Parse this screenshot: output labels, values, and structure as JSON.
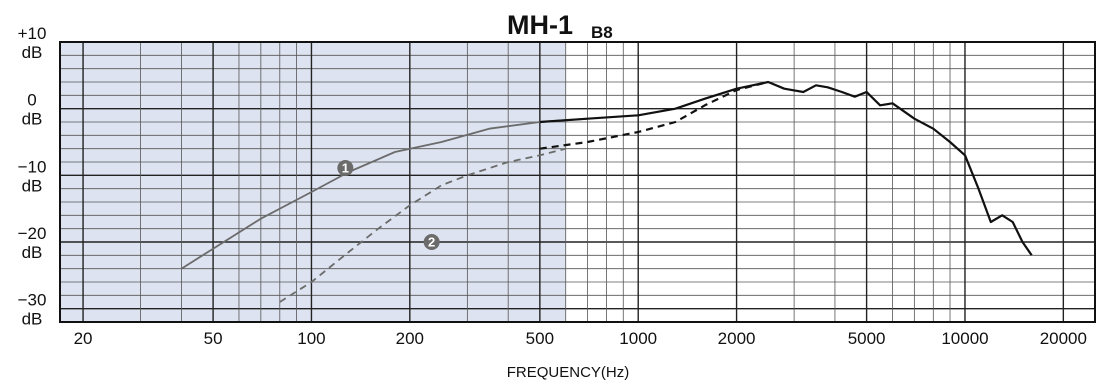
{
  "chart_data": {
    "type": "line",
    "title": "MH-1",
    "subtitle": "B8",
    "xlabel": "FREQUENCY(Hz)",
    "ylabel": "",
    "x_scale": "log",
    "xlim": [
      17,
      25000
    ],
    "ylim": [
      -32,
      10
    ],
    "grid": true,
    "x_ticks": [
      {
        "value": 20,
        "label": "20"
      },
      {
        "value": 50,
        "label": "50"
      },
      {
        "value": 100,
        "label": "100"
      },
      {
        "value": 200,
        "label": "200"
      },
      {
        "value": 500,
        "label": "500"
      },
      {
        "value": 1000,
        "label": "1000"
      },
      {
        "value": 2000,
        "label": "2000"
      },
      {
        "value": 5000,
        "label": "5000"
      },
      {
        "value": 10000,
        "label": "10000"
      },
      {
        "value": 20000,
        "label": "20000"
      }
    ],
    "y_ticks": [
      {
        "value": 10,
        "label": "+10",
        "unit": "dB"
      },
      {
        "value": 0,
        "label": "0",
        "unit": "dB"
      },
      {
        "value": -10,
        "label": "−10",
        "unit": "dB"
      },
      {
        "value": -20,
        "label": "−20",
        "unit": "dB"
      },
      {
        "value": -30,
        "label": "−30",
        "unit": "dB"
      }
    ],
    "shaded_region": {
      "x_from": 17,
      "x_to": 600,
      "color": "#dde3f0"
    },
    "series": [
      {
        "marker": "1",
        "style": "solid-gray",
        "color": "#6b6b6b",
        "x": [
          40,
          50,
          70,
          100,
          130,
          180,
          250,
          350,
          500,
          700
        ],
        "y": [
          -24,
          -21,
          -16.5,
          -12.5,
          -9.5,
          -6.5,
          -5,
          -3,
          -2,
          -1.5
        ]
      },
      {
        "marker": "2",
        "style": "dashed-gray",
        "color": "#6b6b6b",
        "x": [
          80,
          100,
          130,
          160,
          200,
          250,
          300,
          400,
          500,
          600
        ],
        "y": [
          -29,
          -26,
          -21.5,
          -18,
          -14.5,
          -11.5,
          -10,
          -8,
          -7,
          -6
        ]
      },
      {
        "marker": "",
        "style": "solid-black",
        "color": "#111111",
        "x": [
          500,
          700,
          1000,
          1300,
          1600,
          2000,
          2500,
          2800,
          3200,
          3500,
          3800,
          4200,
          4600,
          5000,
          5500,
          6000,
          7000,
          8000,
          9000,
          10000,
          11000,
          12000,
          13000,
          14000,
          15000,
          16000
        ],
        "y": [
          -2,
          -1.5,
          -1,
          0,
          1.5,
          3,
          4,
          3,
          2.5,
          3.5,
          3.2,
          2.5,
          1.8,
          2.5,
          0.5,
          0.8,
          -1.5,
          -3,
          -5,
          -7,
          -12,
          -17,
          -16,
          -17,
          -20,
          -22
        ]
      },
      {
        "marker": "",
        "style": "dashed-black",
        "color": "#111111",
        "x": [
          500,
          700,
          1000,
          1300,
          1600,
          2000,
          2500
        ],
        "y": [
          -6,
          -5,
          -3.5,
          -2,
          0.5,
          2.8,
          4
        ]
      }
    ]
  }
}
